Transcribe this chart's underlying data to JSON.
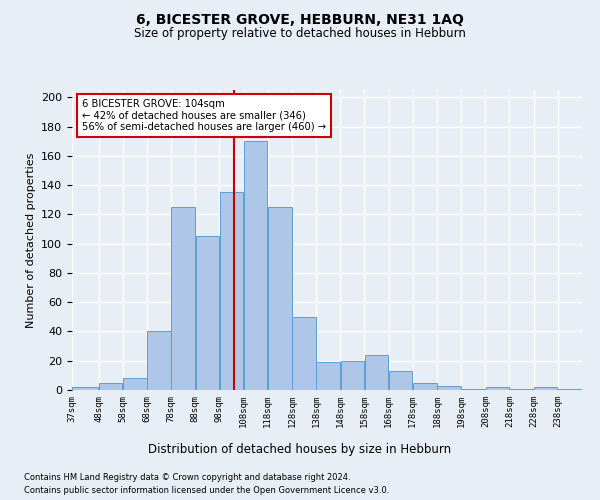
{
  "title1": "6, BICESTER GROVE, HEBBURN, NE31 1AQ",
  "title2": "Size of property relative to detached houses in Hebburn",
  "xlabel": "Distribution of detached houses by size in Hebburn",
  "ylabel": "Number of detached properties",
  "footnote1": "Contains HM Land Registry data © Crown copyright and database right 2024.",
  "footnote2": "Contains public sector information licensed under the Open Government Licence v3.0.",
  "annotation_line1": "6 BICESTER GROVE: 104sqm",
  "annotation_line2": "← 42% of detached houses are smaller (346)",
  "annotation_line3": "56% of semi-detached houses are larger (460) →",
  "bin_labels": [
    "37sqm",
    "48sqm",
    "58sqm",
    "68sqm",
    "78sqm",
    "88sqm",
    "98sqm",
    "108sqm",
    "118sqm",
    "128sqm",
    "138sqm",
    "148sqm",
    "158sqm",
    "168sqm",
    "178sqm",
    "188sqm",
    "198sqm",
    "208sqm",
    "218sqm",
    "228sqm",
    "238sqm"
  ],
  "bar_values": [
    2,
    5,
    8,
    40,
    125,
    105,
    135,
    170,
    125,
    50,
    19,
    20,
    24,
    13,
    5,
    3,
    1,
    2,
    1,
    2,
    1
  ],
  "bar_color": "#aec6e8",
  "bar_edge_color": "#5a9fd4",
  "vline_x": 104,
  "bin_edges": [
    37,
    48,
    58,
    68,
    78,
    88,
    98,
    108,
    118,
    128,
    138,
    148,
    158,
    168,
    178,
    188,
    198,
    208,
    218,
    228,
    238,
    248
  ],
  "ylim": [
    0,
    205
  ],
  "bg_color": "#e8eef5",
  "grid_color": "#ffffff",
  "annotation_box_color": "#ffffff",
  "annotation_box_edge": "#cc0000",
  "vline_color": "#cc0000"
}
